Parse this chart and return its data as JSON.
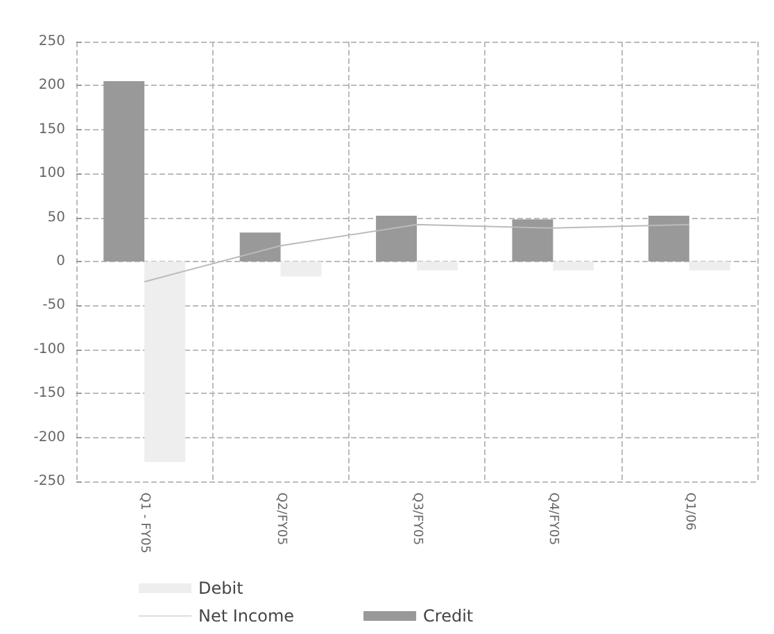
{
  "chart_data": {
    "type": "bar",
    "categories": [
      "Q1 - FY05",
      "Q2/FY05",
      "Q3/FY05",
      "Q4/FY05",
      "Q1/06"
    ],
    "series": [
      {
        "name": "Credit",
        "color": "#999999",
        "values": [
          205,
          33,
          52,
          48,
          52
        ]
      },
      {
        "name": "Debit",
        "color": "#eeeeee",
        "values": [
          -228,
          -17,
          -10,
          -10,
          -10
        ]
      },
      {
        "name": "Net Income",
        "type": "line",
        "color": "#bbbbbb",
        "values": [
          -23,
          18,
          42,
          38,
          42
        ]
      }
    ],
    "ylim": [
      -250,
      250
    ],
    "yticks": [
      -250,
      -200,
      -150,
      -100,
      -50,
      0,
      50,
      100,
      150,
      200,
      250
    ],
    "grid": true,
    "legend": "bottom left",
    "marker": "none"
  }
}
